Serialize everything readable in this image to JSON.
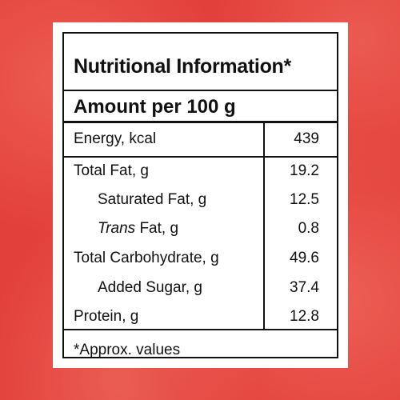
{
  "panel": {
    "title": "Nutritional Information*",
    "amount_header": "Amount per 100 g",
    "rows": [
      {
        "label": "Energy, kcal",
        "value": "439"
      },
      {
        "label": "Total Fat, g",
        "value": "19.2"
      },
      {
        "label": "Saturated Fat, g",
        "value": "12.5"
      },
      {
        "label_italic": "Trans",
        "label_rest": " Fat, g",
        "value": "0.8"
      },
      {
        "label": "Total Carbohydrate, g",
        "value": "49.6"
      },
      {
        "label": "Added Sugar, g",
        "value": "37.4"
      },
      {
        "label": "Protein, g",
        "value": "12.8"
      }
    ],
    "footnote": "*Approx. values"
  },
  "colors": {
    "background": "#e2403a",
    "panel": "#ffffff",
    "text": "#111111"
  }
}
